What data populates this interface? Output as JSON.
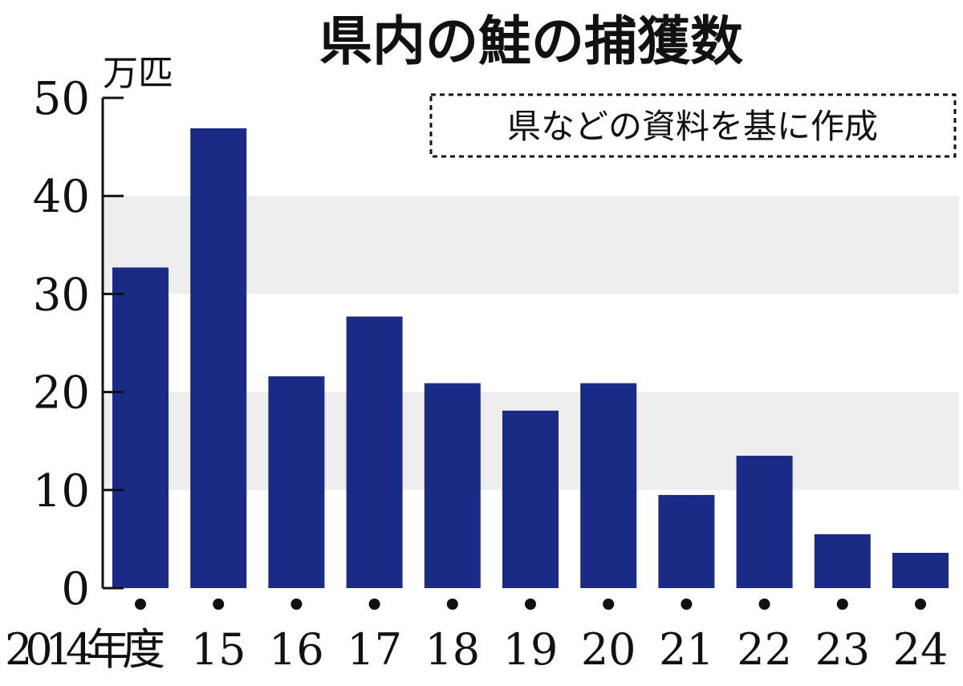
{
  "chart_data": {
    "type": "bar",
    "title": "県内の鮭の捕獲数",
    "unit_label": "万匹",
    "source_note": "県などの資料を基に作成",
    "categories": [
      "2014年度",
      "15",
      "16",
      "17",
      "18",
      "19",
      "20",
      "21",
      "22",
      "23",
      "24"
    ],
    "values": [
      32.7,
      46.9,
      21.6,
      27.7,
      20.9,
      18.1,
      20.9,
      9.5,
      13.5,
      5.5,
      3.6
    ],
    "ylim": [
      0,
      50
    ],
    "yticks": [
      "0",
      "10",
      "20",
      "30",
      "40",
      "50"
    ],
    "grid": "alternating horizontal bands",
    "colors": {
      "bar": "#1a2a85",
      "band": "#eeeeee",
      "axis": "#111111"
    }
  }
}
